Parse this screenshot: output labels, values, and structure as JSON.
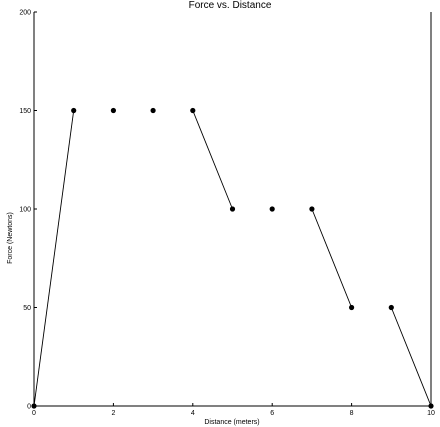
{
  "chart_data": {
    "type": "scatter",
    "title": "Force vs. Distance",
    "xlabel": "Distance (meters)",
    "ylabel": "Force (Newtons)",
    "xlim": [
      0,
      10
    ],
    "ylim": [
      0,
      200
    ],
    "xticks": [
      0,
      2,
      4,
      6,
      8,
      10
    ],
    "xtick_labels": [
      "0",
      "2",
      "4",
      "6",
      "8",
      "10"
    ],
    "yticks": [
      0,
      50,
      100,
      150,
      200
    ],
    "ytick_labels": [
      "0",
      "50",
      "100",
      "150",
      "200"
    ],
    "grid": false,
    "series": [
      {
        "points": [
          {
            "x": 0,
            "y": 0
          },
          {
            "x": 1,
            "y": 150
          },
          {
            "x": 2,
            "y": 150
          },
          {
            "x": 3,
            "y": 150
          },
          {
            "x": 4,
            "y": 150
          },
          {
            "x": 5,
            "y": 100
          },
          {
            "x": 6,
            "y": 100
          },
          {
            "x": 7,
            "y": 100
          },
          {
            "x": 8,
            "y": 50
          },
          {
            "x": 9,
            "y": 50
          },
          {
            "x": 10,
            "y": 0
          }
        ],
        "segments": [
          [
            0,
            1
          ],
          [
            4,
            5
          ],
          [
            7,
            8
          ],
          [
            9,
            10
          ]
        ]
      }
    ]
  }
}
